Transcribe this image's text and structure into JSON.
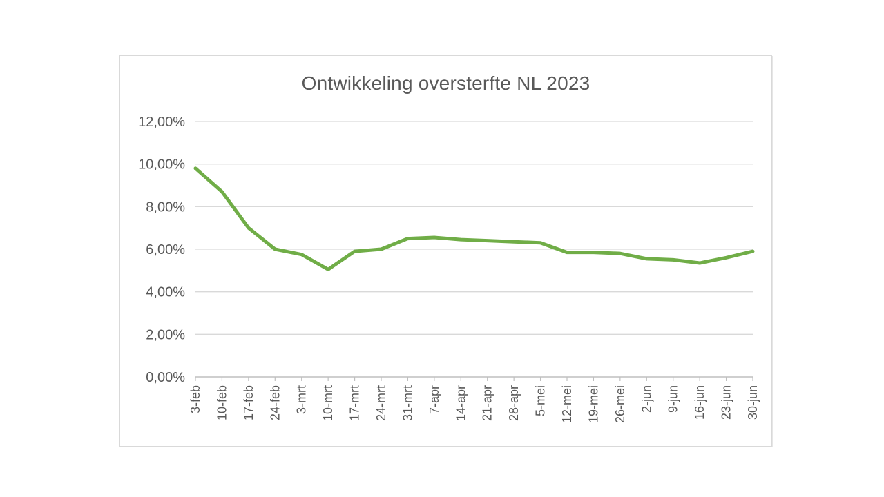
{
  "style": {
    "accent_green": "#70AD47",
    "grid_color": "#d9d9d9",
    "axis_color": "#bfbfbf",
    "text_color": "#595959",
    "border_color": "#d9d9d9",
    "background": "#ffffff"
  },
  "chart_data": {
    "type": "line",
    "title": "Ontwikkeling oversterfte NL 2023",
    "xlabel": "",
    "ylabel": "",
    "legend": "none",
    "grid": "horizontal",
    "ylim": [
      0,
      12
    ],
    "y_tick_values": [
      0,
      2,
      4,
      6,
      8,
      10,
      12
    ],
    "y_tick_labels": [
      "0,00%",
      "2,00%",
      "4,00%",
      "6,00%",
      "8,00%",
      "10,00%",
      "12,00%"
    ],
    "categories": [
      "3-feb",
      "10-feb",
      "17-feb",
      "24-feb",
      "3-mrt",
      "10-mrt",
      "17-mrt",
      "24-mrt",
      "31-mrt",
      "7-apr",
      "14-apr",
      "21-apr",
      "28-apr",
      "5-mei",
      "12-mei",
      "19-mei",
      "26-mei",
      "2-jun",
      "9-jun",
      "16-jun",
      "23-jun",
      "30-jun"
    ],
    "series": [
      {
        "name": "oversterfte",
        "values": [
          9.8,
          8.7,
          7.0,
          6.0,
          5.75,
          5.05,
          5.9,
          6.0,
          6.5,
          6.55,
          6.45,
          6.4,
          6.35,
          6.3,
          5.85,
          5.85,
          5.8,
          5.55,
          5.5,
          5.35,
          5.6,
          5.9
        ]
      }
    ]
  }
}
